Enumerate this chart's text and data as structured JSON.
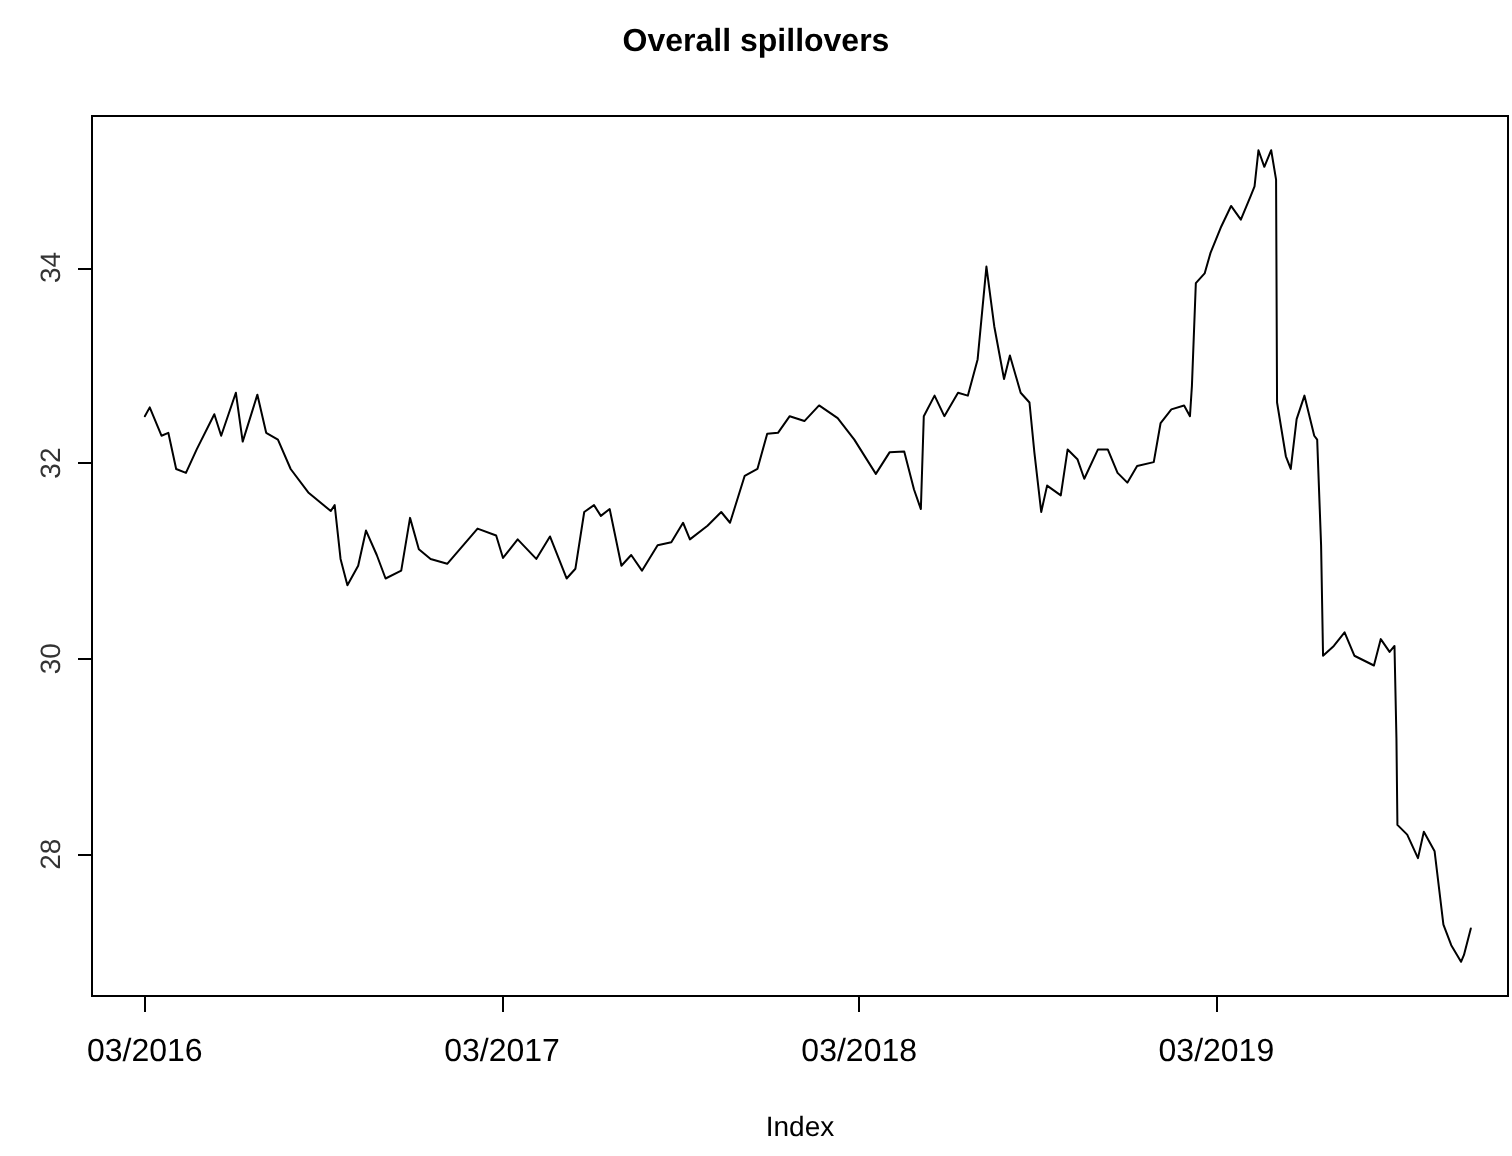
{
  "chart_data": {
    "type": "line",
    "title": "Overall spillovers",
    "xlabel": "Index",
    "xlim": [
      "2016-01-07",
      "2019-12-24"
    ],
    "xticks": [
      {
        "value": "2016-03-01",
        "label": "03/2016"
      },
      {
        "value": "2017-03-01",
        "label": "03/2017"
      },
      {
        "value": "2018-03-01",
        "label": "03/2018"
      },
      {
        "value": "2019-03-01",
        "label": "03/2019"
      }
    ],
    "ylim": [
      26.55,
      35.55
    ],
    "yticks": [
      28,
      30,
      32,
      34
    ],
    "grid": false,
    "marker": "none",
    "line_style": "solid",
    "series": [
      {
        "color": "#000000",
        "x": [
          "2016-03-01",
          "2016-03-06",
          "2016-03-18",
          "2016-03-25",
          "2016-04-02",
          "2016-04-12",
          "2016-04-23",
          "2016-05-11",
          "2016-05-18",
          "2016-06-02",
          "2016-06-09",
          "2016-06-24",
          "2016-07-03",
          "2016-07-15",
          "2016-07-28",
          "2016-08-15",
          "2016-09-07",
          "2016-09-11",
          "2016-09-17",
          "2016-09-24",
          "2016-10-05",
          "2016-10-13",
          "2016-10-24",
          "2016-11-02",
          "2016-11-18",
          "2016-11-27",
          "2016-12-06",
          "2016-12-18",
          "2017-01-04",
          "2017-02-04",
          "2017-02-23",
          "2017-03-02",
          "2017-03-17",
          "2017-04-05",
          "2017-04-19",
          "2017-05-06",
          "2017-05-15",
          "2017-05-24",
          "2017-06-03",
          "2017-06-10",
          "2017-06-19",
          "2017-07-01",
          "2017-07-11",
          "2017-07-22",
          "2017-08-07",
          "2017-08-21",
          "2017-09-02",
          "2017-09-09",
          "2017-09-27",
          "2017-10-11",
          "2017-10-20",
          "2017-11-04",
          "2017-11-17",
          "2017-11-27",
          "2017-12-08",
          "2017-12-20",
          "2018-01-04",
          "2018-01-19",
          "2018-02-07",
          "2018-02-24",
          "2018-03-18",
          "2018-04-01",
          "2018-04-16",
          "2018-04-26",
          "2018-05-03",
          "2018-05-06",
          "2018-05-17",
          "2018-05-27",
          "2018-06-10",
          "2018-06-20",
          "2018-06-30",
          "2018-07-09",
          "2018-07-17",
          "2018-07-27",
          "2018-08-02",
          "2018-08-13",
          "2018-08-22",
          "2018-08-27",
          "2018-09-03",
          "2018-09-09",
          "2018-09-23",
          "2018-09-30",
          "2018-10-10",
          "2018-10-17",
          "2018-10-31",
          "2018-11-10",
          "2018-11-20",
          "2018-11-30",
          "2018-12-10",
          "2018-12-27",
          "2019-01-03",
          "2019-01-14",
          "2019-01-27",
          "2019-02-02",
          "2019-02-04",
          "2019-02-08",
          "2019-02-17",
          "2019-02-23",
          "2019-03-06",
          "2019-03-16",
          "2019-03-26",
          "2019-04-05",
          "2019-04-09",
          "2019-04-13",
          "2019-04-19",
          "2019-04-26",
          "2019-05-01",
          "2019-05-02",
          "2019-05-11",
          "2019-05-16",
          "2019-05-22",
          "2019-05-30",
          "2019-06-09",
          "2019-06-12",
          "2019-06-16",
          "2019-06-18",
          "2019-06-29",
          "2019-07-10",
          "2019-07-20",
          "2019-08-09",
          "2019-08-16",
          "2019-08-25",
          "2019-08-30",
          "2019-09-01",
          "2019-09-02",
          "2019-09-12",
          "2019-09-23",
          "2019-09-29",
          "2019-10-10",
          "2019-10-19",
          "2019-10-27",
          "2019-11-06",
          "2019-11-09",
          "2019-11-16"
        ],
        "values": [
          32.48,
          32.57,
          32.28,
          32.31,
          31.94,
          31.9,
          32.14,
          32.5,
          32.28,
          32.72,
          32.22,
          32.7,
          32.31,
          32.24,
          31.94,
          31.7,
          31.51,
          31.57,
          31.02,
          30.75,
          30.95,
          31.31,
          31.06,
          30.82,
          30.9,
          31.44,
          31.12,
          31.02,
          30.97,
          31.33,
          31.26,
          31.03,
          31.22,
          31.02,
          31.25,
          30.82,
          30.92,
          31.5,
          31.57,
          31.46,
          31.53,
          30.95,
          31.06,
          30.9,
          31.16,
          31.19,
          31.39,
          31.22,
          31.36,
          31.5,
          31.39,
          31.87,
          31.94,
          32.3,
          32.31,
          32.48,
          32.43,
          32.59,
          32.46,
          32.24,
          31.89,
          32.11,
          32.12,
          31.73,
          31.53,
          32.48,
          32.69,
          32.48,
          32.72,
          32.69,
          33.06,
          34.01,
          33.4,
          32.86,
          33.1,
          32.72,
          32.62,
          32.11,
          31.5,
          31.77,
          31.67,
          32.14,
          32.04,
          31.84,
          32.14,
          32.14,
          31.9,
          31.8,
          31.97,
          32.01,
          32.41,
          32.55,
          32.59,
          32.48,
          32.79,
          33.84,
          33.94,
          34.15,
          34.42,
          34.63,
          34.49,
          34.73,
          34.83,
          35.2,
          35.03,
          35.2,
          34.9,
          32.62,
          32.07,
          31.94,
          32.45,
          32.69,
          32.28,
          32.24,
          31.16,
          30.03,
          30.13,
          30.27,
          30.03,
          29.93,
          30.2,
          30.07,
          30.13,
          29.18,
          28.3,
          28.2,
          27.96,
          28.23,
          28.03,
          27.28,
          27.07,
          26.9,
          26.97,
          27.24
        ]
      }
    ]
  }
}
